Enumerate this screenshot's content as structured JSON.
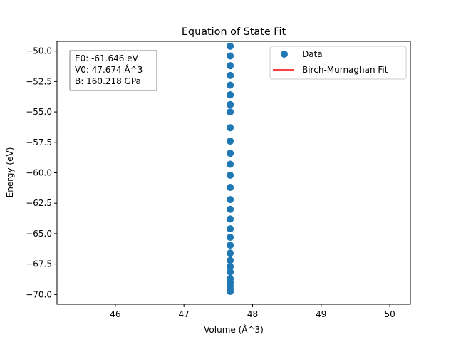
{
  "chart_data": {
    "type": "scatter",
    "title": "Equation of State Fit",
    "xlabel": "Volume (Å^3)",
    "ylabel": "Energy (eV)",
    "xlim": [
      45.15,
      50.3
    ],
    "ylim": [
      -70.8,
      -49.2
    ],
    "xticks": [
      46,
      47,
      48,
      49,
      50
    ],
    "xtick_labels": [
      "46",
      "47",
      "48",
      "49",
      "50"
    ],
    "yticks": [
      -70.0,
      -67.5,
      -65.0,
      -62.5,
      -60.0,
      -57.5,
      -55.0,
      -52.5,
      -50.0
    ],
    "ytick_labels": [
      "−70.0",
      "−67.5",
      "−65.0",
      "−62.5",
      "−60.0",
      "−57.5",
      "−55.0",
      "−52.5",
      "−50.0"
    ],
    "grid": false,
    "legend_position": "top-right",
    "series": [
      {
        "name": "Data",
        "kind": "scatter",
        "color": "#1f77b4",
        "x": [
          47.674,
          47.674,
          47.674,
          47.674,
          47.674,
          47.674,
          47.674,
          47.674,
          47.674,
          47.674,
          47.674,
          47.674,
          47.674,
          47.674,
          47.674,
          47.674,
          47.674,
          47.674,
          47.674,
          47.674,
          47.674,
          47.674,
          47.674,
          47.674,
          47.674,
          47.674,
          47.674,
          47.674,
          47.674,
          47.674,
          47.674
        ],
        "y": [
          -69.75,
          -69.55,
          -69.3,
          -69.0,
          -68.7,
          -68.15,
          -67.7,
          -67.2,
          -66.6,
          -65.95,
          -65.3,
          -64.6,
          -63.8,
          -63.0,
          -62.2,
          -61.2,
          -60.2,
          -59.3,
          -58.4,
          -57.4,
          -56.3,
          -55.0,
          -54.4,
          -53.6,
          -52.8,
          -52.0,
          -51.2,
          -50.4,
          -49.6,
          -54.4,
          -53.6
        ]
      },
      {
        "name": "Birch-Murnaghan Fit",
        "kind": "line",
        "color": "#ff0000",
        "x": [],
        "y": []
      }
    ],
    "annotation": {
      "lines": [
        "E0: -61.646 eV",
        "V0: 47.674 Å^3",
        "B: 160.218 GPa"
      ]
    }
  }
}
